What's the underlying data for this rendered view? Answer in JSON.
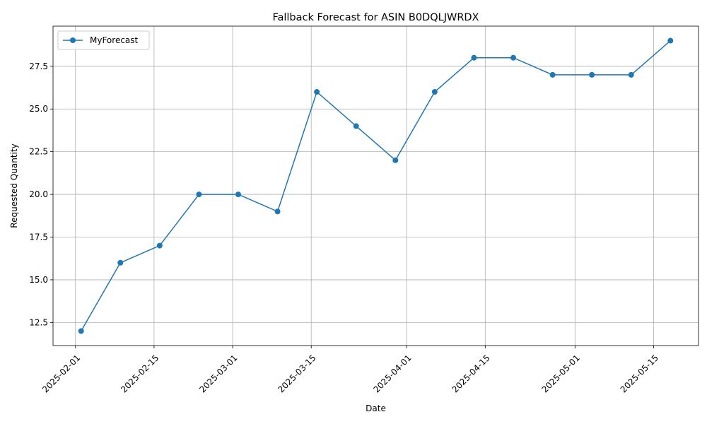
{
  "chart_data": {
    "type": "line",
    "title": "Fallback Forecast for ASIN B0DQLJWRDX",
    "xlabel": "Date",
    "ylabel": "Requested Quantity",
    "x_ticks": [
      "2025-02-01",
      "2025-02-15",
      "2025-03-01",
      "2025-03-15",
      "2025-04-01",
      "2025-04-15",
      "2025-05-01",
      "2025-05-15"
    ],
    "y_ticks": [
      "12.5",
      "15.0",
      "17.5",
      "20.0",
      "22.5",
      "25.0",
      "27.5"
    ],
    "xlim": [
      "2025-01-28",
      "2025-05-23"
    ],
    "ylim": [
      11.15,
      29.85
    ],
    "grid": true,
    "legend_position": "top-left",
    "series": [
      {
        "name": "MyForecast",
        "color": "#1f77b4",
        "marker": "circle",
        "x": [
          "2025-02-02",
          "2025-02-09",
          "2025-02-16",
          "2025-02-23",
          "2025-03-02",
          "2025-03-09",
          "2025-03-16",
          "2025-03-23",
          "2025-03-30",
          "2025-04-06",
          "2025-04-13",
          "2025-04-20",
          "2025-04-27",
          "2025-05-04",
          "2025-05-11",
          "2025-05-18"
        ],
        "y": [
          12,
          16,
          17,
          20,
          20,
          19,
          26,
          24,
          22,
          26,
          28,
          28,
          27,
          27,
          27,
          29
        ]
      }
    ]
  }
}
